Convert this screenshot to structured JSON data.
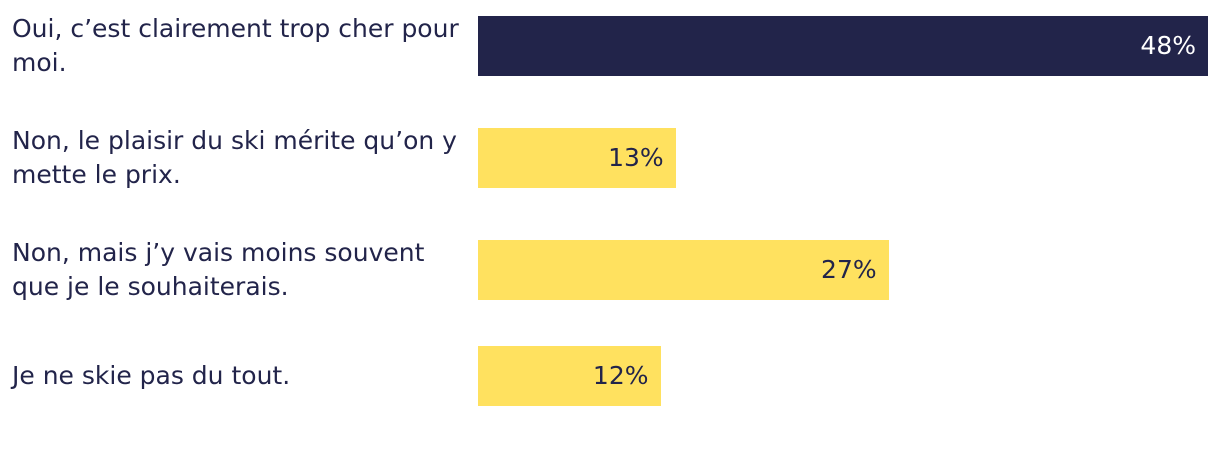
{
  "chart_data": {
    "type": "bar",
    "orientation": "horizontal",
    "categories": [
      "Oui, c’est clairement trop cher pour moi.",
      "Non, le plaisir du ski mérite qu’on y mette le prix.",
      "Non, mais j’y vais moins souvent que je le souhaiterais.",
      "Je ne skie pas du tout."
    ],
    "values": [
      48,
      13,
      27,
      12
    ],
    "value_labels": [
      "48%",
      "13%",
      "27%",
      "12%"
    ],
    "colors": [
      "#22244a",
      "#ffe15f",
      "#ffe15f",
      "#ffe15f"
    ]
  }
}
